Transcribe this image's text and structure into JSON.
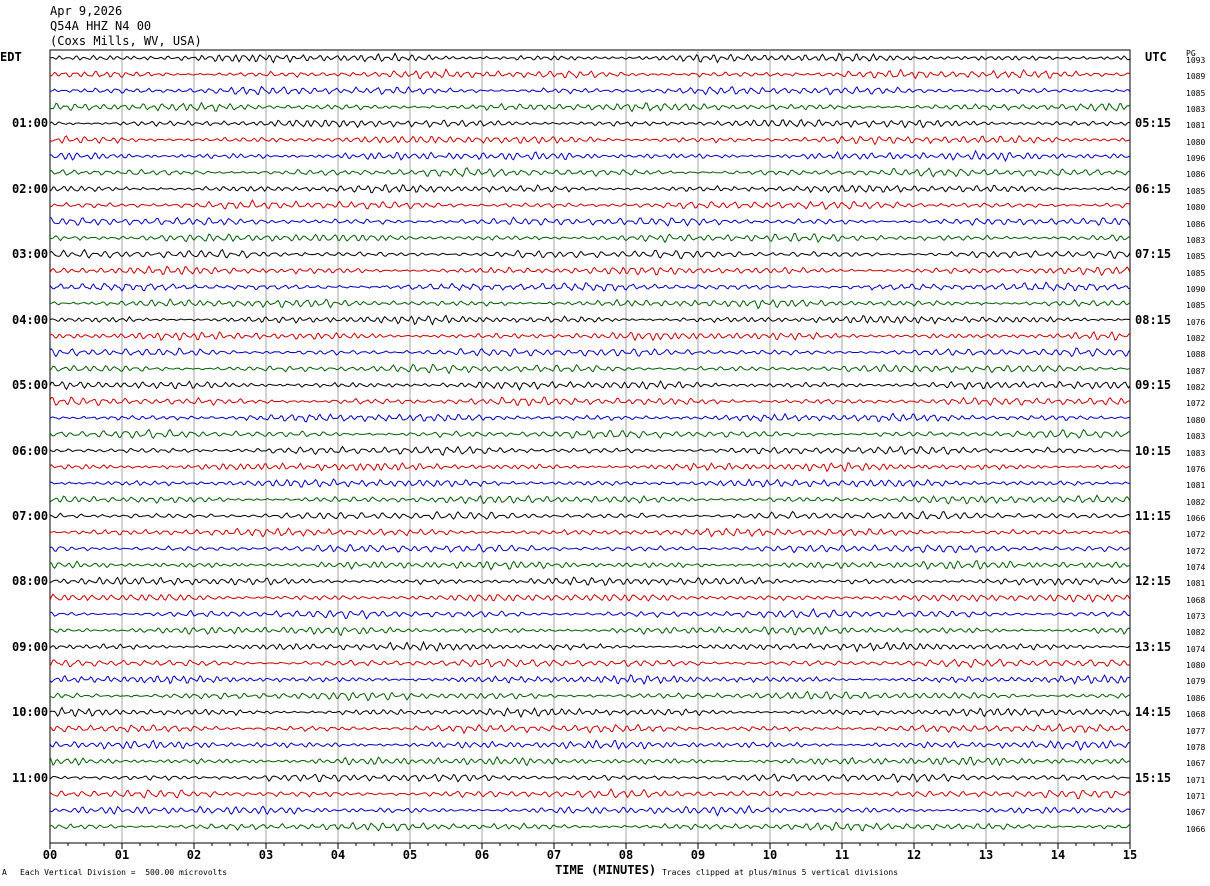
{
  "header": {
    "date": "Apr 9,2026",
    "station": "Q54A HHZ N4 00",
    "location": "(Coxs Mills, WV, USA)"
  },
  "left_zone": "EDT",
  "right_zone": "UTC",
  "right_col_header": "PG",
  "footer": {
    "left_mark": "A",
    "scale": "Each Vertical Division =  500.00 microvolts",
    "clip": "Traces clipped at plus/minus 5 vertical divisions"
  },
  "colors": {
    "trace_cycle": [
      "#000000",
      "#d00000",
      "#0000c8",
      "#006000"
    ],
    "grid": "#808080"
  },
  "chart_data": {
    "type": "line",
    "xlabel": "TIME (MINUTES)",
    "xlim": [
      0,
      15
    ],
    "x_ticks": [
      "00",
      "01",
      "02",
      "03",
      "04",
      "05",
      "06",
      "07",
      "08",
      "09",
      "10",
      "11",
      "12",
      "13",
      "14",
      "15"
    ],
    "trace_count": 48,
    "left_hour_labels": [
      "01:00",
      "02:00",
      "03:00",
      "04:00",
      "05:00",
      "06:00",
      "07:00",
      "08:00",
      "09:00",
      "10:00",
      "11:00"
    ],
    "right_hour_labels": [
      "05:15",
      "06:15",
      "07:15",
      "08:15",
      "09:15",
      "10:15",
      "11:15",
      "12:15",
      "13:15",
      "14:15",
      "15:15"
    ],
    "trace_values": [
      "1093",
      "1089",
      "1085",
      "1083",
      "1081",
      "1080",
      "1096",
      "1086",
      "1085",
      "1080",
      "1086",
      "1083",
      "1085",
      "1085",
      "1090",
      "1085",
      "1076",
      "1082",
      "1088",
      "1087",
      "1082",
      "1072",
      "1080",
      "1083",
      "1083",
      "1076",
      "1081",
      "1082",
      "1066",
      "1072",
      "1072",
      "1074",
      "1081",
      "1068",
      "1073",
      "1082",
      "1074",
      "1080",
      "1079",
      "1086",
      "1068",
      "1077",
      "1078",
      "1067",
      "1071",
      "1071",
      "1067",
      "1066"
    ]
  }
}
